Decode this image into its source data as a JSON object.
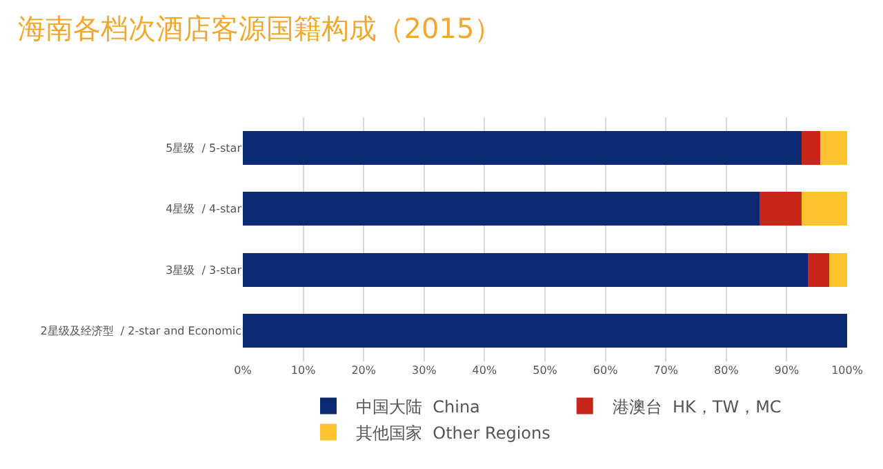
{
  "chart_data": {
    "type": "bar",
    "orientation": "horizontal",
    "stacked": true,
    "title": "海南各档次酒店客源国籍构成（2015）",
    "categories": [
      "5星级  / 5-star",
      "4星级  / 4-star",
      "3星级  / 3-star",
      "2星级及经济型  / 2-star and Economic"
    ],
    "series": [
      {
        "name": "中国大陆  China",
        "color": "#0b2a6f",
        "values": [
          92.5,
          85.5,
          93.5,
          100
        ]
      },
      {
        "name": "港澳台  HK，TW，MC",
        "color": "#c8251b",
        "values": [
          3,
          7,
          3.5,
          0
        ]
      },
      {
        "name": "其他国家  Other Regions",
        "color": "#fcc52f",
        "values": [
          4.5,
          7.5,
          3,
          0
        ]
      }
    ],
    "xlim": [
      0,
      100
    ],
    "xticks": [
      {
        "value": 0,
        "label": "0%"
      },
      {
        "value": 10,
        "label": "10%"
      },
      {
        "value": 20,
        "label": "20%"
      },
      {
        "value": 30,
        "label": "30%"
      },
      {
        "value": 40,
        "label": "40%"
      },
      {
        "value": 50,
        "label": "50%"
      },
      {
        "value": 60,
        "label": "60%"
      },
      {
        "value": 70,
        "label": "70%"
      },
      {
        "value": 80,
        "label": "80%"
      },
      {
        "value": 90,
        "label": "90%"
      },
      {
        "value": 100,
        "label": "100%"
      }
    ],
    "grid": "x",
    "legend": "bottom"
  }
}
